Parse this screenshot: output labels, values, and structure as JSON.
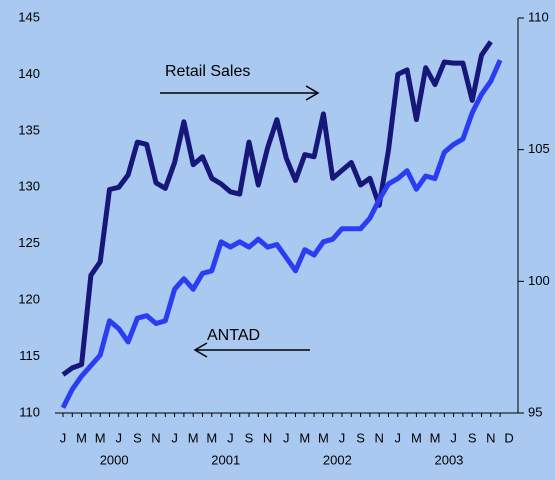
{
  "chart_data": {
    "type": "line",
    "categories": [
      "J",
      null,
      "M",
      null,
      "M",
      null,
      "J",
      null,
      "S",
      null,
      "N",
      null,
      "J",
      null,
      "M",
      null,
      "M",
      null,
      "J",
      null,
      "S",
      null,
      "N",
      null,
      "J",
      null,
      "M",
      null,
      "M",
      null,
      "J",
      null,
      "S",
      null,
      "N",
      null,
      "J",
      null,
      "M",
      null,
      "M",
      null,
      "J",
      null,
      "S",
      null,
      "N",
      "D"
    ],
    "year_labels": [
      "2000",
      "2001",
      "2002",
      "2003"
    ],
    "series": [
      {
        "name": "ANTAD",
        "color": "#17177a",
        "axis": "y",
        "values": [
          113.4,
          114,
          114.3,
          122.2,
          123.4,
          129.8,
          130,
          131.1,
          134,
          133.8,
          130.4,
          129.9,
          132.2,
          135.8,
          132,
          132.7,
          130.8,
          130.3,
          129.6,
          129.4,
          134,
          130.2,
          133.5,
          136,
          132.6,
          130.6,
          132.9,
          132.7,
          136.5,
          130.8,
          131.5,
          132.2,
          130.2,
          130.8,
          128.4,
          133.3,
          140,
          140.4,
          136,
          140.6,
          139.1,
          141.1,
          141,
          141,
          137.7,
          141.7,
          142.9,
          null
        ]
      },
      {
        "name": "Retail Sales",
        "color": "#2a3df2",
        "axis": "y2",
        "values": [
          95.2,
          95.9,
          96.4,
          96.8,
          97.2,
          98.5,
          98.2,
          97.7,
          98.6,
          98.7,
          98.4,
          98.5,
          99.7,
          100.1,
          99.7,
          100.3,
          100.4,
          101.5,
          101.3,
          101.5,
          101.3,
          101.6,
          101.3,
          101.4,
          100.9,
          100.4,
          101.2,
          101,
          101.5,
          101.6,
          102,
          102,
          102,
          102.4,
          103.1,
          103.7,
          103.9,
          104.2,
          103.5,
          104,
          103.9,
          104.9,
          105.2,
          105.4,
          106.4,
          107.1,
          107.6,
          108.4
        ]
      }
    ],
    "ylim": [
      110,
      145
    ],
    "yticks": [
      110,
      115,
      120,
      125,
      130,
      135,
      140,
      145
    ],
    "y2lim": [
      95,
      110
    ],
    "y2ticks": [
      95,
      100,
      105,
      110
    ],
    "grid": false
  }
}
